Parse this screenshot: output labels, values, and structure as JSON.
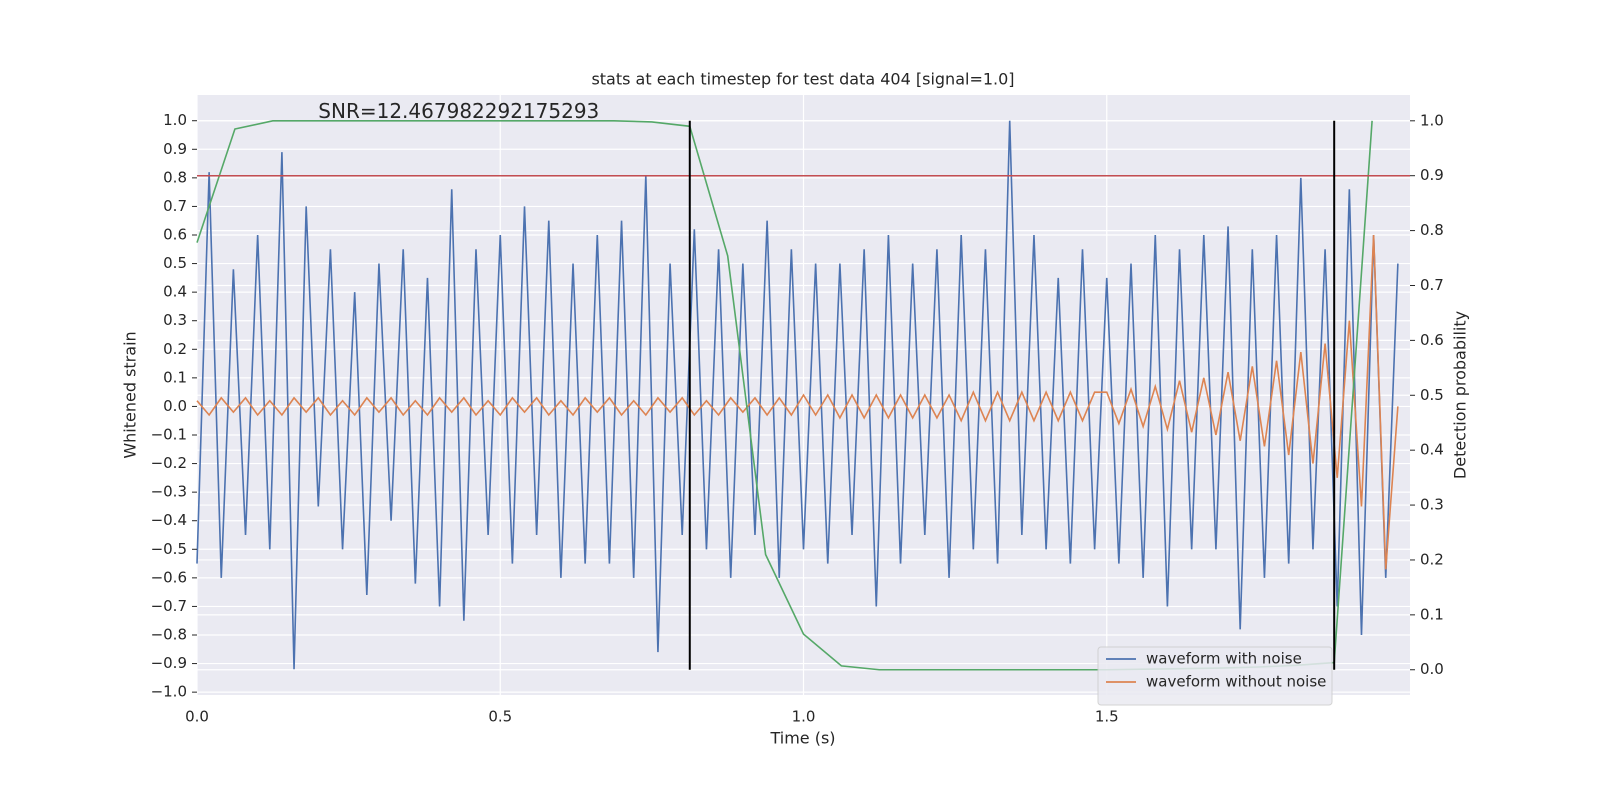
{
  "chart_data": {
    "type": "line",
    "title": "stats at each timestep for test data 404 [signal=1.0]",
    "xlabel": "Time (s)",
    "ylabel": "Whitened strain",
    "y2label": "Detection probability",
    "annotation": {
      "text": "SNR=12.467982292175293",
      "x": 0.2,
      "y": 1.0
    },
    "xlim": [
      0,
      2.0
    ],
    "ylim": [
      -1.01,
      1.09
    ],
    "y2lim": [
      -0.046,
      1.047
    ],
    "xticks": [
      {
        "value": 0,
        "label": "0.0"
      },
      0.5,
      {
        "value": 1,
        "label": "1.0"
      },
      1.5
    ],
    "yticks": [
      {
        "value": -1,
        "label": "−1.0"
      },
      {
        "value": -0.9,
        "label": "−0.9"
      },
      {
        "value": -0.8,
        "label": "−0.8"
      },
      {
        "value": -0.7,
        "label": "−0.7"
      },
      {
        "value": -0.6,
        "label": "−0.6"
      },
      {
        "value": -0.5,
        "label": "−0.5"
      },
      {
        "value": -0.4,
        "label": "−0.4"
      },
      {
        "value": -0.3,
        "label": "−0.3"
      },
      {
        "value": -0.2,
        "label": "−0.2"
      },
      {
        "value": -0.1,
        "label": "−0.1"
      },
      {
        "value": 0,
        "label": "0.0"
      },
      0.1,
      0.2,
      0.3,
      0.4,
      0.5,
      0.6,
      0.7,
      0.8,
      0.9,
      {
        "value": 1,
        "label": "1.0"
      }
    ],
    "y2ticks": [
      {
        "value": 0,
        "label": "0.0"
      },
      0.1,
      0.2,
      0.3,
      0.4,
      0.5,
      0.6,
      0.7,
      0.8,
      0.9,
      {
        "value": 1,
        "label": "1.0"
      }
    ],
    "grid": true,
    "legend": "lower right",
    "series": [
      {
        "name": "waveform with noise",
        "color": "#4c72b0",
        "x": [
          0,
          0.02,
          0.04,
          0.06,
          0.08,
          0.1,
          0.12,
          0.14,
          0.16,
          0.18,
          0.2,
          0.22,
          0.24,
          0.26,
          0.28,
          0.3,
          0.32,
          0.34,
          0.36,
          0.38,
          0.4,
          0.42,
          0.44,
          0.46,
          0.48,
          0.5,
          0.52,
          0.54,
          0.56,
          0.58,
          0.6,
          0.62,
          0.64,
          0.66,
          0.68,
          0.7,
          0.72,
          0.74,
          0.76,
          0.78,
          0.8,
          0.82,
          0.84,
          0.86,
          0.88,
          0.9,
          0.92,
          0.94,
          0.96,
          0.98,
          1,
          1.02,
          1.04,
          1.06,
          1.08,
          1.1,
          1.12,
          1.14,
          1.16,
          1.18,
          1.2,
          1.22,
          1.24,
          1.26,
          1.28,
          1.3,
          1.32,
          1.34,
          1.36,
          1.38,
          1.4,
          1.42,
          1.44,
          1.46,
          1.48,
          1.5,
          1.52,
          1.54,
          1.56,
          1.58,
          1.6,
          1.62,
          1.64,
          1.66,
          1.68,
          1.7,
          1.72,
          1.74,
          1.76,
          1.78,
          1.8,
          1.82,
          1.84,
          1.86,
          1.88,
          1.9,
          1.92,
          1.94,
          1.96,
          1.98
        ],
        "values": [
          -0.55,
          0.82,
          -0.6,
          0.48,
          -0.45,
          0.6,
          -0.5,
          0.89,
          -0.92,
          0.7,
          -0.35,
          0.55,
          -0.5,
          0.4,
          -0.66,
          0.5,
          -0.4,
          0.55,
          -0.62,
          0.45,
          -0.7,
          0.76,
          -0.75,
          0.55,
          -0.45,
          0.6,
          -0.55,
          0.7,
          -0.45,
          0.65,
          -0.6,
          0.5,
          -0.55,
          0.6,
          -0.55,
          0.65,
          -0.6,
          0.81,
          -0.86,
          0.5,
          -0.45,
          0.62,
          -0.5,
          0.55,
          -0.6,
          0.5,
          -0.45,
          0.65,
          -0.6,
          0.55,
          -0.5,
          0.5,
          -0.55,
          0.5,
          -0.45,
          0.55,
          -0.7,
          0.6,
          -0.55,
          0.5,
          -0.45,
          0.55,
          -0.6,
          0.6,
          -0.5,
          0.55,
          -0.55,
          1.0,
          -0.45,
          0.6,
          -0.5,
          0.45,
          -0.55,
          0.55,
          -0.5,
          0.45,
          -0.55,
          0.5,
          -0.6,
          0.6,
          -0.7,
          0.55,
          -0.5,
          0.6,
          -0.5,
          0.63,
          -0.78,
          0.55,
          -0.6,
          0.6,
          -0.55,
          0.8,
          -0.5,
          0.55,
          -0.7,
          0.76,
          -0.8,
          0.6,
          -0.6,
          0.5
        ]
      },
      {
        "name": "waveform without noise",
        "color": "#dd8452",
        "x": [
          0,
          0.02,
          0.04,
          0.06,
          0.08,
          0.1,
          0.12,
          0.14,
          0.16,
          0.18,
          0.2,
          0.22,
          0.24,
          0.26,
          0.28,
          0.3,
          0.32,
          0.34,
          0.36,
          0.38,
          0.4,
          0.42,
          0.44,
          0.46,
          0.48,
          0.5,
          0.52,
          0.54,
          0.56,
          0.58,
          0.6,
          0.62,
          0.64,
          0.66,
          0.68,
          0.7,
          0.72,
          0.74,
          0.76,
          0.78,
          0.8,
          0.82,
          0.84,
          0.86,
          0.88,
          0.9,
          0.92,
          0.94,
          0.96,
          0.98,
          1,
          1.02,
          1.04,
          1.06,
          1.08,
          1.1,
          1.12,
          1.14,
          1.16,
          1.18,
          1.2,
          1.22,
          1.24,
          1.26,
          1.28,
          1.3,
          1.32,
          1.34,
          1.36,
          1.38,
          1.4,
          1.42,
          1.44,
          1.46,
          1.48,
          1.5,
          1.52,
          1.54,
          1.56,
          1.58,
          1.6,
          1.62,
          1.64,
          1.66,
          1.68,
          1.7,
          1.72,
          1.74,
          1.76,
          1.78,
          1.8,
          1.82,
          1.84,
          1.86,
          1.88,
          1.9,
          1.92,
          1.94,
          1.96,
          1.98
        ],
        "values": [
          0.02,
          -0.03,
          0.03,
          -0.02,
          0.03,
          -0.03,
          0.02,
          -0.03,
          0.03,
          -0.02,
          0.03,
          -0.03,
          0.02,
          -0.03,
          0.03,
          -0.02,
          0.03,
          -0.03,
          0.02,
          -0.03,
          0.03,
          -0.02,
          0.03,
          -0.03,
          0.02,
          -0.03,
          0.03,
          -0.02,
          0.03,
          -0.03,
          0.02,
          -0.03,
          0.03,
          -0.02,
          0.03,
          -0.03,
          0.02,
          -0.03,
          0.03,
          -0.02,
          0.03,
          -0.03,
          0.02,
          -0.03,
          0.03,
          -0.02,
          0.03,
          -0.03,
          0.03,
          -0.03,
          0.04,
          -0.03,
          0.04,
          -0.04,
          0.04,
          -0.04,
          0.04,
          -0.04,
          0.04,
          -0.04,
          0.04,
          -0.04,
          0.04,
          -0.05,
          0.05,
          -0.05,
          0.05,
          -0.05,
          0.05,
          -0.05,
          0.05,
          -0.05,
          0.05,
          -0.05,
          0.05,
          0.05,
          -0.06,
          0.06,
          -0.07,
          0.07,
          -0.08,
          0.09,
          -0.09,
          0.1,
          -0.1,
          0.12,
          -0.12,
          0.14,
          -0.14,
          0.16,
          -0.17,
          0.19,
          -0.2,
          0.22,
          -0.25,
          0.3,
          -0.35,
          0.6,
          -0.57,
          0.0
        ]
      },
      {
        "color": "#55a868",
        "axis": "y2",
        "x": [
          0,
          0.0625,
          0.125,
          0.1875,
          0.25,
          0.3125,
          0.375,
          0.4375,
          0.5,
          0.5625,
          0.625,
          0.6875,
          0.75,
          0.8125,
          0.875,
          0.9375,
          1,
          1.0625,
          1.125,
          1.1875,
          1.25,
          1.3125,
          1.375,
          1.4375,
          1.5,
          1.5625,
          1.625,
          1.6875,
          1.75,
          1.8125,
          1.875,
          1.9375
        ],
        "values": [
          0.778,
          0.985,
          1.0,
          1.0,
          1.0,
          1.0,
          1.0,
          1.0,
          1.0,
          1.0,
          1.0,
          1.0,
          0.998,
          0.99,
          0.754,
          0.21,
          0.065,
          0.007,
          0.0,
          0.0,
          0.0,
          0.0,
          0.0,
          0.0,
          0.0,
          0.001,
          0.002,
          0.003,
          0.005,
          0.008,
          0.013,
          1.0
        ]
      }
    ],
    "threshold": {
      "y": 0.9,
      "axis": "y2",
      "color": "#c44e52"
    },
    "vlines": {
      "x": [
        0.8125,
        1.875
      ],
      "ymin": 0,
      "ymax": 1,
      "axis": "y2",
      "color": "#000000"
    }
  }
}
